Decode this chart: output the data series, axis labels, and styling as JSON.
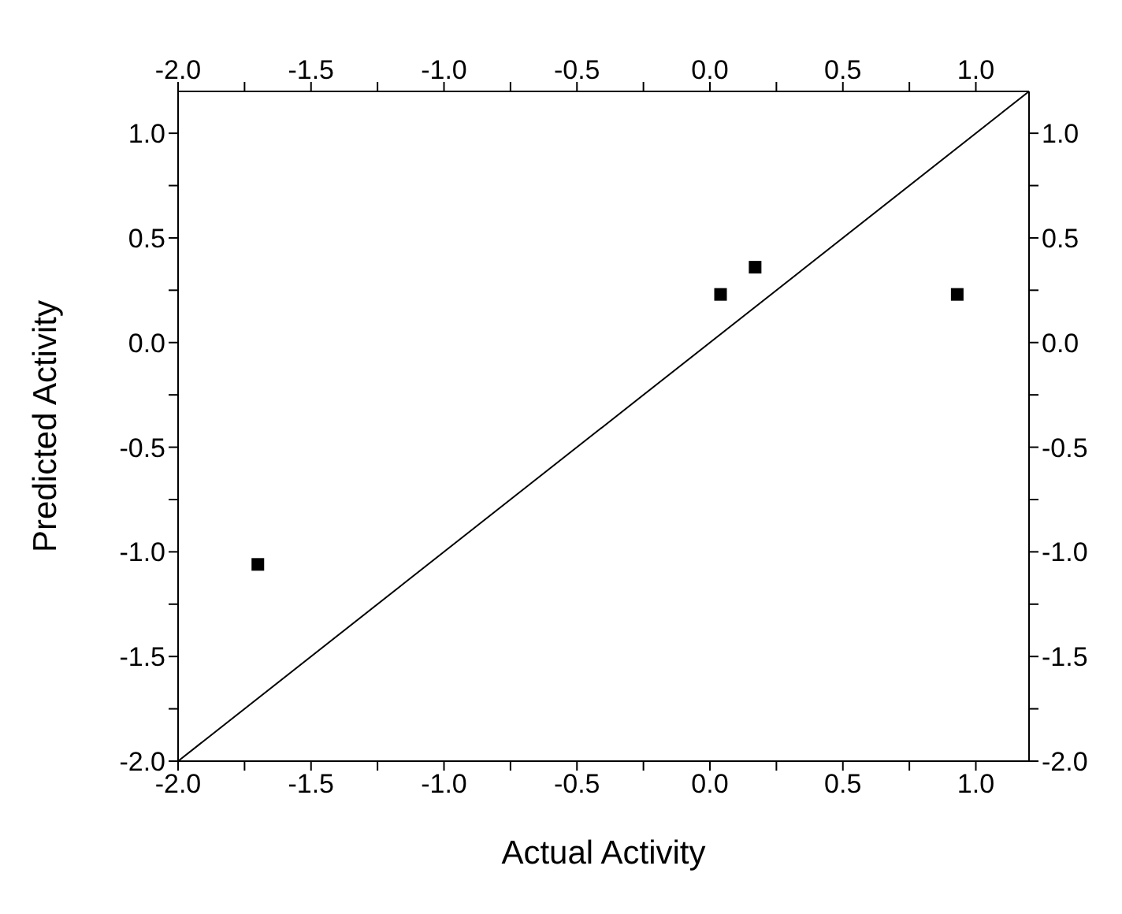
{
  "chart_data": {
    "type": "scatter",
    "xlabel": "Actual Activity",
    "ylabel": "Predicted Activity",
    "marker": "square",
    "xlim": [
      -2.0,
      1.2
    ],
    "xticks": [
      {
        "value": -2.0,
        "label": "-2.0"
      },
      {
        "value": -1.75,
        "label": null
      },
      {
        "value": -1.5,
        "label": "-1.5"
      },
      {
        "value": -1.25,
        "label": null
      },
      {
        "value": -1.0,
        "label": "-1.0"
      },
      {
        "value": -0.75,
        "label": null
      },
      {
        "value": -0.5,
        "label": "-0.5"
      },
      {
        "value": -0.25,
        "label": null
      },
      {
        "value": 0.0,
        "label": "0.0"
      },
      {
        "value": 0.25,
        "label": null
      },
      {
        "value": 0.5,
        "label": "0.5"
      },
      {
        "value": 0.75,
        "label": null
      },
      {
        "value": 1.0,
        "label": "1.0"
      }
    ],
    "x2lim": [
      -2.0,
      1.2
    ],
    "x2ticks": [
      {
        "value": -2.0,
        "label": "-2.0"
      },
      {
        "value": -1.75,
        "label": null
      },
      {
        "value": -1.5,
        "label": "-1.5"
      },
      {
        "value": -1.25,
        "label": null
      },
      {
        "value": -1.0,
        "label": "-1.0"
      },
      {
        "value": -0.75,
        "label": null
      },
      {
        "value": -0.5,
        "label": "-0.5"
      },
      {
        "value": -0.25,
        "label": null
      },
      {
        "value": 0.0,
        "label": "0.0"
      },
      {
        "value": 0.25,
        "label": null
      },
      {
        "value": 0.5,
        "label": "0.5"
      },
      {
        "value": 0.75,
        "label": null
      },
      {
        "value": 1.0,
        "label": "1.0"
      }
    ],
    "ylim": [
      -2.0,
      1.2
    ],
    "yticks": [
      {
        "value": -2.0,
        "label": "-2.0"
      },
      {
        "value": -1.75,
        "label": null
      },
      {
        "value": -1.5,
        "label": "-1.5"
      },
      {
        "value": -1.25,
        "label": null
      },
      {
        "value": -1.0,
        "label": "-1.0"
      },
      {
        "value": -0.75,
        "label": null
      },
      {
        "value": -0.5,
        "label": "-0.5"
      },
      {
        "value": -0.25,
        "label": null
      },
      {
        "value": 0.0,
        "label": "0.0"
      },
      {
        "value": 0.25,
        "label": null
      },
      {
        "value": 0.5,
        "label": "0.5"
      },
      {
        "value": 0.75,
        "label": null
      },
      {
        "value": 1.0,
        "label": "1.0"
      }
    ],
    "y2lim": [
      -2.0,
      1.2
    ],
    "y2ticks": [
      {
        "value": -2.0,
        "label": "-2.0"
      },
      {
        "value": -1.75,
        "label": null
      },
      {
        "value": -1.5,
        "label": "-1.5"
      },
      {
        "value": -1.25,
        "label": null
      },
      {
        "value": -1.0,
        "label": "-1.0"
      },
      {
        "value": -0.75,
        "label": null
      },
      {
        "value": -0.5,
        "label": "-0.5"
      },
      {
        "value": -0.25,
        "label": null
      },
      {
        "value": 0.0,
        "label": "0.0"
      },
      {
        "value": 0.25,
        "label": null
      },
      {
        "value": 0.5,
        "label": "0.5"
      },
      {
        "value": 0.75,
        "label": null
      },
      {
        "value": 1.0,
        "label": "1.0"
      }
    ],
    "series": [
      {
        "color": "#000000",
        "x": [
          -1.7,
          0.04,
          0.17,
          0.93
        ],
        "values": [
          -1.06,
          0.23,
          0.36,
          0.23
        ]
      },
      {
        "type": "line",
        "color": "#000000",
        "marker": "none",
        "x": [
          -2.0,
          1.2
        ],
        "values": [
          -2.0,
          1.2
        ]
      }
    ]
  }
}
